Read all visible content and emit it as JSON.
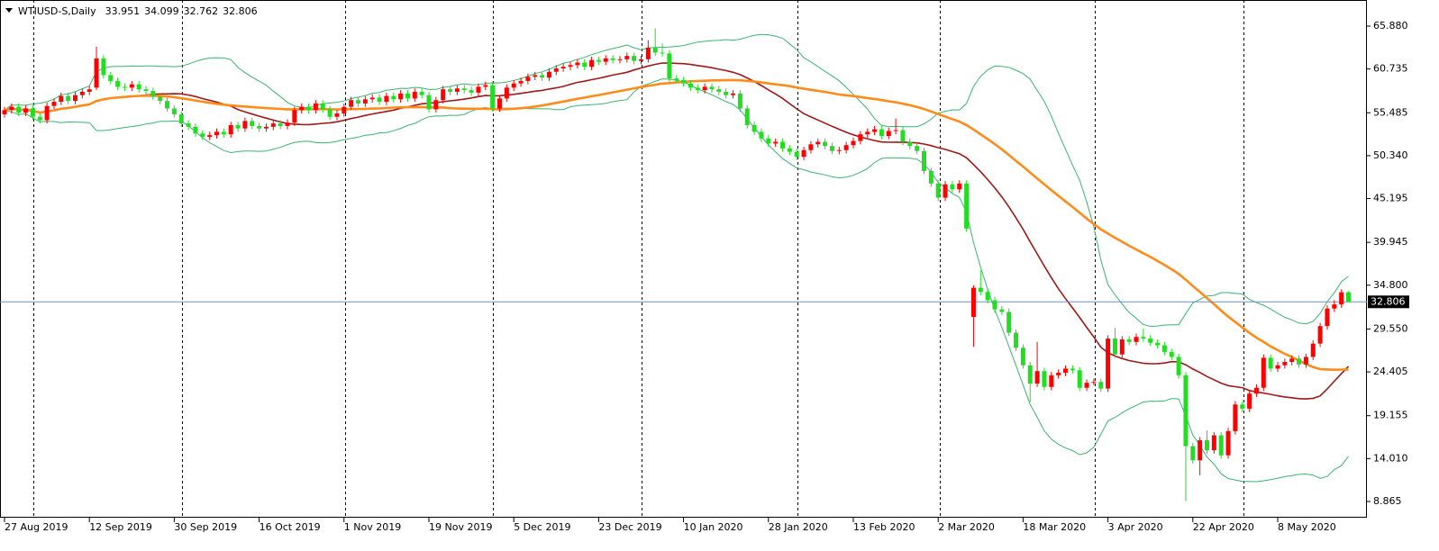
{
  "chart_data": {
    "type": "candlestick",
    "title": "WTIUSD-S,Daily",
    "bull_color": "#ff0000",
    "bear_color": "#22dd22",
    "ylim": [
      6.92,
      69.01
    ],
    "yticks": [
      {
        "value": 65.88,
        "label": "65.880"
      },
      {
        "value": 60.735,
        "label": "60.735"
      },
      {
        "value": 55.485,
        "label": "55.485"
      },
      {
        "value": 50.34,
        "label": "50.340"
      },
      {
        "value": 45.195,
        "label": "45.195"
      },
      {
        "value": 39.945,
        "label": "39.945"
      },
      {
        "value": 34.8,
        "label": "34.800"
      },
      {
        "value": 29.55,
        "label": "29.550"
      },
      {
        "value": 24.405,
        "label": "24.405"
      },
      {
        "value": 19.155,
        "label": "19.155"
      },
      {
        "value": 14.01,
        "label": "14.010"
      },
      {
        "value": 8.865,
        "label": "8.865"
      }
    ],
    "categories": [
      "27 Aug 2019",
      null,
      null,
      null,
      null,
      null,
      null,
      null,
      null,
      null,
      null,
      null,
      "12 Sep 2019",
      null,
      null,
      null,
      null,
      null,
      null,
      null,
      null,
      null,
      null,
      null,
      "30 Sep 2019",
      null,
      null,
      null,
      null,
      null,
      null,
      null,
      null,
      null,
      null,
      null,
      "16 Oct 2019",
      null,
      null,
      null,
      null,
      null,
      null,
      null,
      null,
      null,
      null,
      null,
      "1 Nov 2019",
      null,
      null,
      null,
      null,
      null,
      null,
      null,
      null,
      null,
      null,
      null,
      "19 Nov 2019",
      null,
      null,
      null,
      null,
      null,
      null,
      null,
      null,
      null,
      null,
      null,
      "5 Dec 2019",
      null,
      null,
      null,
      null,
      null,
      null,
      null,
      null,
      null,
      null,
      null,
      "23 Dec 2019",
      null,
      null,
      null,
      null,
      null,
      null,
      null,
      null,
      null,
      null,
      null,
      "10 Jan 2020",
      null,
      null,
      null,
      null,
      null,
      null,
      null,
      null,
      null,
      null,
      null,
      "28 Jan 2020",
      null,
      null,
      null,
      null,
      null,
      null,
      null,
      null,
      null,
      null,
      null,
      "13 Feb 2020",
      null,
      null,
      null,
      null,
      null,
      null,
      null,
      null,
      null,
      null,
      null,
      "2 Mar 2020",
      null,
      null,
      null,
      null,
      null,
      null,
      null,
      null,
      null,
      null,
      null,
      "18 Mar 2020",
      null,
      null,
      null,
      null,
      null,
      null,
      null,
      null,
      null,
      null,
      null,
      "3 Apr 2020",
      null,
      null,
      null,
      null,
      null,
      null,
      null,
      null,
      null,
      null,
      null,
      "22 Apr 2020",
      null,
      null,
      null,
      null,
      null,
      null,
      null,
      null,
      null,
      null,
      null,
      "8 May 2020",
      null,
      null,
      null,
      null,
      null,
      null,
      null,
      null,
      null,
      null
    ],
    "candles": [
      [
        55.3,
        56.2,
        54.9,
        55.8
      ],
      [
        55.8,
        56.6,
        55.4,
        56.2
      ],
      [
        56.2,
        56.6,
        55.1,
        55.5
      ],
      [
        55.5,
        56.4,
        55.1,
        56.0
      ],
      [
        56.0,
        56.4,
        54.6,
        55.0
      ],
      [
        55.0,
        55.4,
        54.2,
        54.6
      ],
      [
        54.6,
        56.7,
        54.2,
        56.3
      ],
      [
        56.3,
        57.2,
        55.9,
        56.8
      ],
      [
        56.8,
        57.9,
        56.4,
        57.5
      ],
      [
        57.5,
        57.9,
        56.5,
        56.9
      ],
      [
        56.9,
        58.0,
        56.5,
        57.6
      ],
      [
        57.6,
        58.4,
        57.2,
        58.0
      ],
      [
        58.0,
        58.7,
        57.6,
        58.3
      ],
      [
        58.5,
        63.4,
        58.2,
        62.0
      ],
      [
        62.0,
        62.4,
        59.6,
        60.0
      ],
      [
        60.0,
        60.4,
        58.9,
        59.3
      ],
      [
        59.3,
        59.7,
        58.2,
        58.6
      ],
      [
        58.6,
        59.0,
        58.1,
        58.5
      ],
      [
        58.5,
        59.3,
        58.1,
        58.9
      ],
      [
        58.9,
        59.3,
        57.9,
        58.3
      ],
      [
        58.3,
        58.7,
        57.7,
        58.1
      ],
      [
        58.1,
        58.5,
        57.0,
        57.4
      ],
      [
        57.4,
        57.8,
        56.5,
        56.9
      ],
      [
        56.9,
        57.3,
        55.6,
        56.0
      ],
      [
        56.0,
        56.4,
        54.9,
        55.3
      ],
      [
        55.3,
        55.7,
        53.8,
        54.2
      ],
      [
        54.2,
        54.6,
        53.4,
        53.8
      ],
      [
        53.8,
        54.2,
        52.6,
        53.0
      ],
      [
        53.0,
        53.4,
        52.2,
        52.6
      ],
      [
        52.6,
        53.2,
        52.2,
        52.8
      ],
      [
        52.8,
        53.6,
        52.4,
        53.2
      ],
      [
        53.2,
        53.6,
        52.5,
        52.9
      ],
      [
        52.9,
        54.4,
        52.5,
        54.0
      ],
      [
        54.0,
        54.4,
        53.2,
        53.6
      ],
      [
        53.6,
        54.9,
        53.2,
        54.5
      ],
      [
        54.5,
        54.9,
        53.5,
        53.9
      ],
      [
        53.9,
        54.3,
        53.2,
        53.6
      ],
      [
        53.6,
        54.2,
        53.2,
        53.8
      ],
      [
        53.8,
        54.6,
        53.4,
        54.2
      ],
      [
        54.2,
        54.6,
        53.5,
        53.9
      ],
      [
        53.9,
        54.7,
        53.5,
        54.3
      ],
      [
        54.3,
        56.2,
        53.9,
        55.8
      ],
      [
        55.8,
        56.6,
        55.4,
        56.2
      ],
      [
        56.2,
        56.6,
        55.4,
        55.8
      ],
      [
        55.8,
        57.0,
        55.4,
        56.6
      ],
      [
        56.6,
        57.0,
        55.5,
        55.9
      ],
      [
        55.9,
        56.3,
        54.6,
        55.0
      ],
      [
        55.0,
        55.8,
        54.6,
        55.4
      ],
      [
        55.4,
        56.6,
        55.0,
        56.2
      ],
      [
        56.2,
        57.4,
        55.8,
        57.0
      ],
      [
        57.0,
        57.4,
        56.2,
        56.6
      ],
      [
        56.6,
        57.5,
        56.2,
        57.1
      ],
      [
        57.1,
        57.7,
        56.7,
        57.3
      ],
      [
        57.3,
        57.7,
        56.4,
        56.8
      ],
      [
        56.8,
        57.9,
        56.4,
        57.5
      ],
      [
        57.5,
        57.9,
        56.7,
        57.1
      ],
      [
        57.1,
        58.2,
        56.7,
        57.8
      ],
      [
        57.8,
        58.2,
        56.8,
        57.2
      ],
      [
        57.2,
        58.4,
        56.8,
        58.0
      ],
      [
        58.0,
        58.4,
        57.2,
        57.6
      ],
      [
        57.6,
        58.0,
        55.5,
        55.9
      ],
      [
        55.9,
        57.4,
        55.5,
        57.0
      ],
      [
        57.0,
        58.7,
        56.6,
        58.3
      ],
      [
        58.3,
        58.7,
        57.6,
        58.0
      ],
      [
        58.0,
        58.8,
        57.6,
        58.4
      ],
      [
        58.4,
        58.8,
        57.8,
        58.2
      ],
      [
        58.2,
        58.6,
        57.5,
        57.9
      ],
      [
        57.9,
        59.0,
        57.5,
        58.6
      ],
      [
        58.6,
        59.2,
        58.2,
        58.8
      ],
      [
        58.8,
        59.2,
        55.6,
        56.0
      ],
      [
        56.0,
        57.6,
        55.6,
        57.2
      ],
      [
        57.2,
        58.9,
        56.8,
        58.5
      ],
      [
        58.5,
        59.4,
        58.1,
        59.0
      ],
      [
        59.0,
        59.7,
        58.6,
        59.3
      ],
      [
        59.3,
        60.2,
        58.9,
        59.8
      ],
      [
        59.8,
        60.4,
        59.4,
        60.0
      ],
      [
        60.0,
        60.4,
        59.3,
        59.7
      ],
      [
        59.7,
        60.8,
        59.3,
        60.4
      ],
      [
        60.4,
        61.2,
        60.0,
        60.8
      ],
      [
        60.8,
        61.4,
        60.4,
        61.0
      ],
      [
        61.0,
        61.6,
        60.6,
        61.2
      ],
      [
        61.2,
        61.9,
        60.8,
        61.5
      ],
      [
        61.5,
        61.9,
        60.6,
        61.0
      ],
      [
        61.0,
        62.2,
        60.6,
        61.8
      ],
      [
        61.8,
        62.2,
        61.2,
        61.6
      ],
      [
        61.6,
        62.4,
        61.2,
        62.0
      ],
      [
        62.0,
        62.4,
        61.4,
        61.8
      ],
      [
        61.8,
        62.3,
        61.4,
        61.9
      ],
      [
        61.9,
        62.7,
        61.5,
        62.3
      ],
      [
        62.3,
        62.7,
        61.3,
        61.7
      ],
      [
        61.7,
        62.3,
        61.3,
        61.9
      ],
      [
        61.9,
        64.2,
        61.5,
        63.3
      ],
      [
        63.3,
        65.6,
        62.3,
        62.7
      ],
      [
        62.7,
        63.8,
        62.2,
        62.6
      ],
      [
        62.6,
        63.0,
        59.2,
        59.6
      ],
      [
        59.6,
        60.0,
        59.0,
        59.4
      ],
      [
        59.4,
        59.8,
        58.6,
        59.0
      ],
      [
        59.0,
        59.4,
        58.1,
        58.5
      ],
      [
        58.5,
        58.9,
        57.8,
        58.2
      ],
      [
        58.2,
        59.0,
        57.8,
        58.6
      ],
      [
        58.6,
        59.0,
        57.9,
        58.3
      ],
      [
        58.3,
        58.7,
        57.6,
        58.0
      ],
      [
        58.0,
        58.4,
        57.2,
        57.6
      ],
      [
        57.6,
        58.2,
        57.2,
        57.8
      ],
      [
        57.8,
        58.2,
        55.6,
        56.0
      ],
      [
        56.0,
        56.4,
        53.6,
        54.0
      ],
      [
        54.0,
        54.4,
        52.8,
        53.2
      ],
      [
        53.2,
        53.6,
        52.0,
        52.4
      ],
      [
        52.4,
        52.8,
        51.4,
        51.8
      ],
      [
        51.8,
        52.4,
        51.4,
        52.0
      ],
      [
        52.0,
        52.4,
        50.8,
        51.2
      ],
      [
        51.2,
        51.6,
        50.4,
        50.8
      ],
      [
        50.8,
        51.2,
        49.8,
        50.2
      ],
      [
        50.2,
        51.4,
        49.8,
        51.0
      ],
      [
        51.0,
        52.1,
        50.6,
        51.7
      ],
      [
        51.7,
        52.4,
        51.3,
        52.0
      ],
      [
        52.0,
        52.4,
        51.1,
        51.5
      ],
      [
        51.5,
        51.9,
        50.5,
        50.9
      ],
      [
        50.9,
        51.4,
        50.5,
        51.0
      ],
      [
        51.0,
        52.0,
        50.6,
        51.6
      ],
      [
        51.6,
        52.5,
        51.2,
        52.1
      ],
      [
        52.1,
        53.3,
        51.7,
        52.9
      ],
      [
        52.9,
        53.6,
        52.5,
        53.2
      ],
      [
        53.2,
        53.9,
        52.8,
        53.5
      ],
      [
        53.5,
        53.9,
        52.3,
        52.7
      ],
      [
        52.7,
        53.7,
        52.3,
        53.3
      ],
      [
        53.3,
        54.8,
        52.9,
        53.4
      ],
      [
        53.4,
        53.8,
        51.6,
        52.0
      ],
      [
        52.0,
        52.4,
        51.1,
        51.5
      ],
      [
        51.5,
        51.9,
        50.5,
        50.9
      ],
      [
        50.9,
        51.3,
        48.1,
        48.5
      ],
      [
        48.5,
        48.9,
        46.6,
        47.0
      ],
      [
        47.0,
        47.4,
        44.9,
        45.3
      ],
      [
        45.3,
        47.3,
        44.9,
        46.9
      ],
      [
        46.9,
        47.3,
        45.9,
        46.3
      ],
      [
        46.3,
        47.4,
        45.9,
        47.0
      ],
      [
        47.0,
        47.4,
        41.2,
        41.6
      ],
      [
        31.0,
        34.8,
        27.4,
        34.5
      ],
      [
        34.5,
        36.6,
        33.6,
        34.0
      ],
      [
        34.0,
        34.4,
        32.6,
        33.0
      ],
      [
        33.0,
        33.4,
        31.5,
        31.9
      ],
      [
        31.9,
        32.3,
        31.2,
        31.6
      ],
      [
        31.6,
        32.0,
        28.7,
        29.1
      ],
      [
        29.1,
        29.5,
        26.9,
        27.3
      ],
      [
        27.3,
        27.7,
        24.8,
        25.2
      ],
      [
        25.2,
        25.6,
        20.8,
        23.0
      ],
      [
        23.0,
        28.0,
        22.6,
        24.5
      ],
      [
        24.5,
        24.9,
        22.2,
        22.6
      ],
      [
        22.6,
        24.4,
        22.2,
        24.0
      ],
      [
        24.0,
        24.7,
        23.6,
        24.3
      ],
      [
        24.3,
        25.2,
        23.9,
        24.8
      ],
      [
        24.8,
        25.2,
        24.2,
        24.6
      ],
      [
        24.6,
        25.0,
        22.1,
        22.5
      ],
      [
        22.5,
        23.5,
        22.1,
        23.1
      ],
      [
        23.1,
        23.6,
        22.8,
        23.2
      ],
      [
        23.2,
        23.6,
        22.0,
        22.4
      ],
      [
        22.4,
        28.8,
        22.0,
        28.4
      ],
      [
        28.4,
        29.7,
        26.1,
        26.5
      ],
      [
        26.5,
        28.7,
        26.1,
        28.3
      ],
      [
        28.3,
        28.7,
        27.6,
        28.0
      ],
      [
        28.0,
        29.0,
        27.6,
        28.6
      ],
      [
        28.6,
        29.6,
        28.0,
        28.4
      ],
      [
        28.4,
        28.8,
        27.5,
        27.9
      ],
      [
        27.9,
        28.3,
        27.2,
        27.6
      ],
      [
        27.6,
        28.0,
        26.4,
        26.8
      ],
      [
        26.8,
        27.2,
        25.8,
        26.2
      ],
      [
        26.2,
        26.6,
        23.6,
        24.0
      ],
      [
        24.0,
        24.4,
        8.9,
        15.5
      ],
      [
        15.5,
        15.9,
        13.4,
        13.8
      ],
      [
        13.8,
        16.6,
        12.0,
        16.2
      ],
      [
        16.2,
        17.4,
        14.6,
        15.0
      ],
      [
        15.0,
        17.2,
        14.6,
        16.8
      ],
      [
        16.8,
        17.2,
        14.0,
        14.4
      ],
      [
        14.4,
        17.7,
        14.0,
        17.3
      ],
      [
        17.3,
        20.9,
        16.9,
        20.5
      ],
      [
        20.5,
        20.9,
        19.6,
        20.0
      ],
      [
        20.0,
        22.2,
        19.6,
        21.8
      ],
      [
        21.8,
        22.9,
        21.4,
        22.5
      ],
      [
        22.5,
        26.5,
        22.1,
        26.1
      ],
      [
        26.1,
        26.5,
        24.4,
        24.8
      ],
      [
        24.8,
        25.6,
        24.4,
        25.2
      ],
      [
        25.2,
        26.0,
        24.8,
        25.6
      ],
      [
        25.6,
        26.4,
        25.2,
        26.0
      ],
      [
        26.0,
        26.4,
        24.9,
        25.3
      ],
      [
        25.3,
        26.6,
        24.9,
        26.2
      ],
      [
        26.2,
        28.2,
        25.8,
        27.8
      ],
      [
        27.8,
        30.3,
        27.4,
        29.9
      ],
      [
        29.9,
        32.4,
        29.5,
        32.0
      ],
      [
        32.0,
        33.0,
        31.6,
        32.5
      ],
      [
        32.5,
        34.3,
        32.1,
        33.951
      ],
      [
        33.951,
        34.099,
        32.762,
        32.806
      ]
    ]
  }
}
